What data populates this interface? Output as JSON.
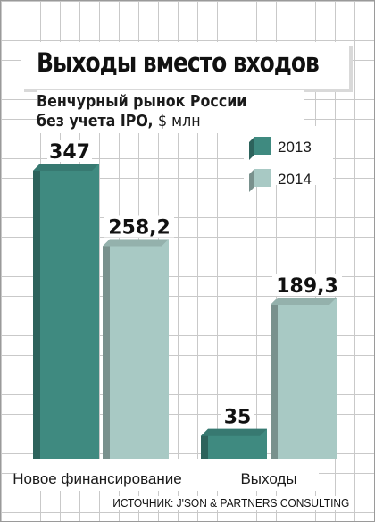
{
  "title": "Выходы вместо входов",
  "subtitle_line1": "Венчурный рынок России",
  "subtitle_line2": "без учета IPO,",
  "unit": "$ млн",
  "source": "ИСТОЧНИК: J'SON & PARTNERS CONSULTING",
  "colors": {
    "2013": "#3f8a80",
    "2014": "#a8c9c4"
  },
  "chart_data": {
    "type": "bar",
    "categories": [
      "Новое финансирование",
      "Выходы"
    ],
    "series": [
      {
        "name": "2013",
        "values": [
          347,
          35
        ],
        "labels": [
          "347",
          "35"
        ]
      },
      {
        "name": "2014",
        "values": [
          258.2,
          189.3
        ],
        "labels": [
          "258,2",
          "189,3"
        ]
      }
    ],
    "legend_position": "top-right"
  }
}
